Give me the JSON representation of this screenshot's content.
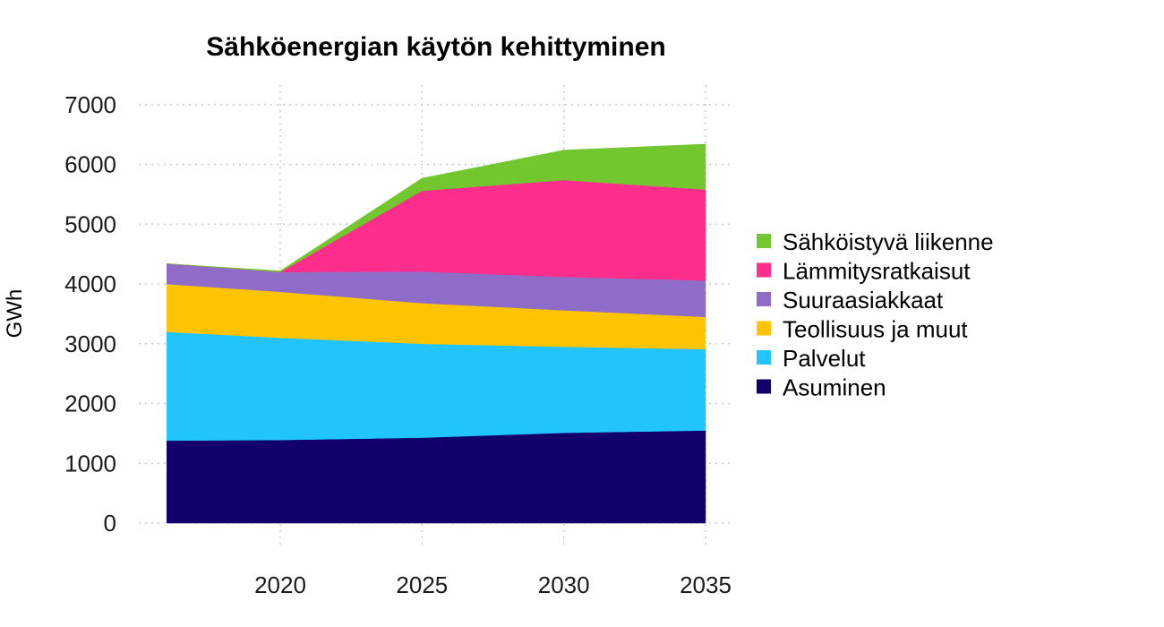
{
  "chart_data": {
    "type": "area",
    "stacked": true,
    "title": "Sähköenergian käytön kehittyminen",
    "xlabel": "",
    "ylabel": "GWh",
    "x": [
      2016,
      2020,
      2025,
      2030,
      2035
    ],
    "x_ticks": [
      "2020",
      "2025",
      "2030",
      "2035"
    ],
    "x_tick_values": [
      2020,
      2025,
      2030,
      2035
    ],
    "y_ticks": [
      "0",
      "1000",
      "2000",
      "3000",
      "4000",
      "5000",
      "6000",
      "7000"
    ],
    "ylim": [
      0,
      7000
    ],
    "grid": true,
    "legend_position": "right",
    "series": [
      {
        "name": "Asuminen",
        "color": "#11006b",
        "values": [
          1380,
          1390,
          1430,
          1510,
          1550
        ]
      },
      {
        "name": "Palvelut",
        "color": "#22c4fc",
        "values": [
          1820,
          1710,
          1570,
          1440,
          1360
        ]
      },
      {
        "name": "Teollisuus ja muut",
        "color": "#ffc400",
        "values": [
          800,
          770,
          680,
          610,
          540
        ]
      },
      {
        "name": "Suuraasiakkaat",
        "color": "#8e6cc8",
        "values": [
          340,
          330,
          530,
          560,
          610
        ]
      },
      {
        "name": "Lämmitysratkaisut",
        "color": "#ff2d8c",
        "values": [
          0,
          0,
          1350,
          1620,
          1520
        ]
      },
      {
        "name": "Sähköistyvä liikenne",
        "color": "#72c72e",
        "values": [
          0,
          20,
          210,
          500,
          760
        ]
      }
    ]
  }
}
